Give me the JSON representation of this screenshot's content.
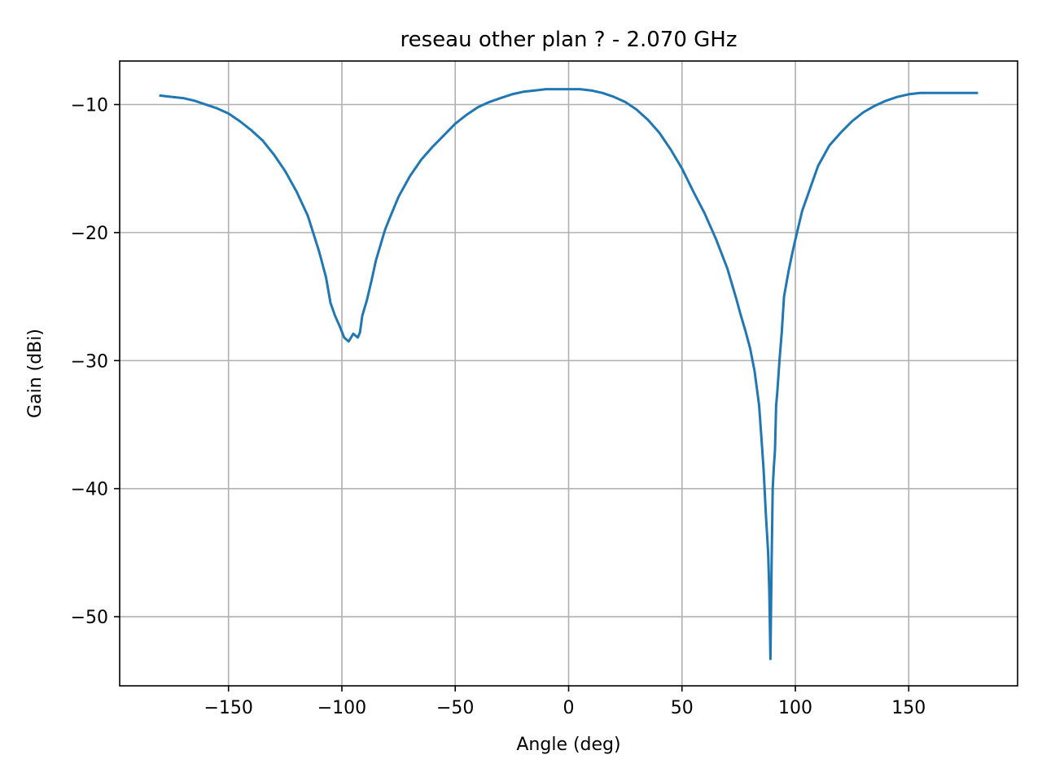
{
  "chart_data": {
    "type": "line",
    "title": "reseau other plan ? - 2.070 GHz",
    "xlabel": "Angle (deg)",
    "ylabel": "Gain (dBi)",
    "xlim": [
      -198,
      198
    ],
    "ylim": [
      -55.4,
      -6.6
    ],
    "xticks": [
      -150,
      -100,
      -50,
      0,
      50,
      100,
      150
    ],
    "xtick_labels": [
      "−150",
      "−100",
      "−50",
      "0",
      "50",
      "100",
      "150"
    ],
    "yticks": [
      -10,
      -20,
      -30,
      -40,
      -50
    ],
    "ytick_labels": [
      "−10",
      "−20",
      "−30",
      "−40",
      "−50"
    ],
    "grid": true,
    "legend": "none",
    "series": [
      {
        "color": "#1f77b4",
        "x": [
          -180,
          -175,
          -170,
          -165,
          -160,
          -155,
          -150,
          -145,
          -140,
          -135,
          -130,
          -125,
          -120,
          -115,
          -110,
          -107,
          -105,
          -103,
          -101,
          -99,
          -97,
          -95,
          -93,
          -92,
          -91,
          -89,
          -87,
          -85,
          -83,
          -81,
          -79,
          -75,
          -70,
          -65,
          -60,
          -55,
          -50,
          -45,
          -40,
          -35,
          -30,
          -25,
          -20,
          -15,
          -10,
          -5,
          0,
          5,
          10,
          15,
          20,
          25,
          30,
          35,
          40,
          45,
          50,
          55,
          60,
          65,
          70,
          72,
          74,
          76,
          78,
          80,
          82,
          84,
          85,
          86,
          87,
          88,
          88.5,
          89,
          89.5,
          90,
          90.5,
          91,
          91.5,
          92,
          93,
          94,
          95,
          97,
          99,
          101,
          103,
          105,
          107,
          110,
          115,
          120,
          125,
          130,
          135,
          140,
          145,
          150,
          155,
          160,
          165,
          170,
          175,
          180
        ],
        "y": [
          -9.3,
          -9.4,
          -9.5,
          -9.7,
          -10.0,
          -10.3,
          -10.7,
          -11.3,
          -12.0,
          -12.8,
          -13.9,
          -15.2,
          -16.8,
          -18.7,
          -21.5,
          -23.5,
          -25.5,
          -26.5,
          -27.3,
          -28.2,
          -28.5,
          -27.9,
          -28.2,
          -27.8,
          -26.5,
          -25.3,
          -23.8,
          -22.2,
          -21.0,
          -19.8,
          -18.9,
          -17.2,
          -15.6,
          -14.3,
          -13.3,
          -12.4,
          -11.5,
          -10.8,
          -10.2,
          -9.8,
          -9.5,
          -9.2,
          -9.0,
          -8.9,
          -8.8,
          -8.8,
          -8.8,
          -8.8,
          -8.9,
          -9.1,
          -9.4,
          -9.8,
          -10.4,
          -11.2,
          -12.2,
          -13.5,
          -15.0,
          -16.8,
          -18.5,
          -20.5,
          -22.8,
          -24.0,
          -25.2,
          -26.5,
          -27.7,
          -29.0,
          -30.8,
          -33.5,
          -36.0,
          -38.5,
          -42.0,
          -45.0,
          -48.0,
          -53.3,
          -46.0,
          -40.0,
          -38.3,
          -37.0,
          -33.5,
          -32.5,
          -30.0,
          -27.8,
          -25.0,
          -23.0,
          -21.3,
          -19.8,
          -18.3,
          -17.3,
          -16.3,
          -14.8,
          -13.2,
          -12.2,
          -11.3,
          -10.6,
          -10.1,
          -9.7,
          -9.4,
          -9.2,
          -9.1,
          -9.1,
          -9.1,
          -9.1,
          -9.1,
          -9.1
        ]
      }
    ]
  }
}
